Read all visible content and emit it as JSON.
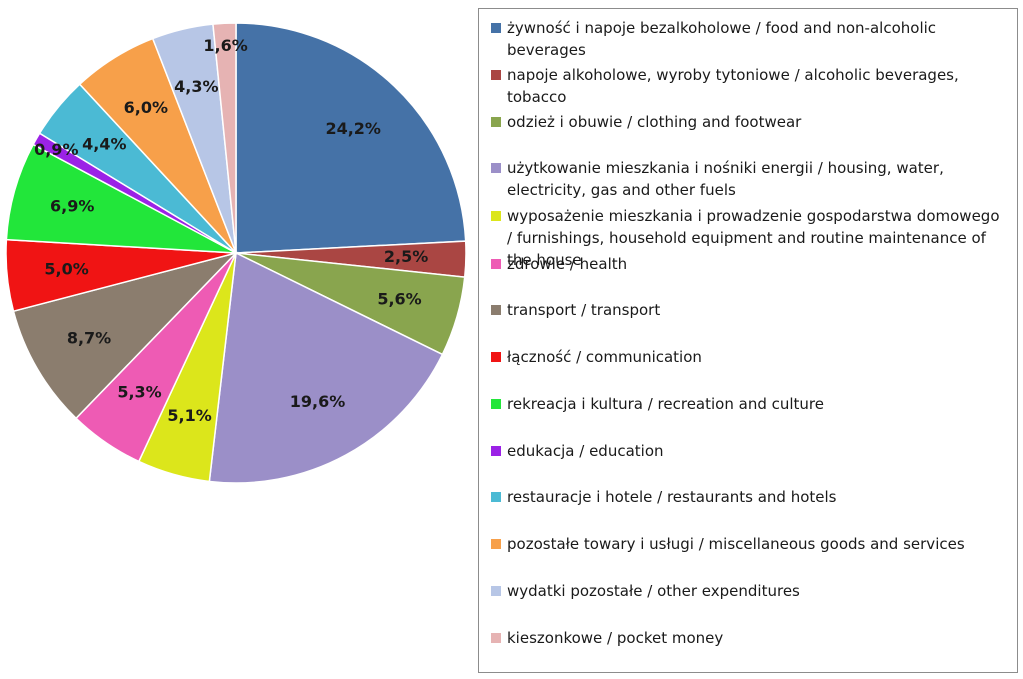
{
  "chart_data": {
    "type": "pie",
    "title": "",
    "start_angle_deg": 0,
    "direction": "clockwise",
    "legend_position": "right",
    "slices": [
      {
        "label": "żywność i napoje bezalkoholowe / food and non-alcoholic beverages",
        "value": 24.2,
        "display": "24,2%",
        "color": "#4572a7"
      },
      {
        "label": "napoje alkoholowe, wyroby tytoniowe / alcoholic beverages, tobacco",
        "value": 2.5,
        "display": "2,5%",
        "color": "#aa4643"
      },
      {
        "label": "odzież i obuwie / clothing and footwear",
        "value": 5.6,
        "display": "5,6%",
        "color": "#89a54e"
      },
      {
        "label": "użytkowanie mieszkania i nośniki energii / housing, water, electricity, gas and other fuels",
        "value": 19.6,
        "display": "19,6%",
        "color": "#9b8fc8"
      },
      {
        "label": "wyposażenie mieszkania i prowadzenie gospodarstwa domowego / furnishings, household equipment and routine maintenance of the house",
        "value": 5.1,
        "display": "5,1%",
        "color": "#dce61b"
      },
      {
        "label": "zdrowie / health",
        "value": 5.3,
        "display": "5,3%",
        "color": "#ee5bb4"
      },
      {
        "label": "transport / transport",
        "value": 8.7,
        "display": "8,7%",
        "color": "#8b7d6e"
      },
      {
        "label": "łączność / communication",
        "value": 5.0,
        "display": "5,0%",
        "color": "#f01414"
      },
      {
        "label": "rekreacja i kultura / recreation and culture",
        "value": 6.9,
        "display": "6,9%",
        "color": "#22e63a"
      },
      {
        "label": "edukacja / education",
        "value": 0.9,
        "display": "0,9%",
        "color": "#9b22e6"
      },
      {
        "label": "restauracje i hotele / restaurants and hotels",
        "value": 4.4,
        "display": "4,4%",
        "color": "#4bbad4"
      },
      {
        "label": "pozostałe towary i usługi / miscellaneous goods and services",
        "value": 6.0,
        "display": "6,0%",
        "color": "#f7a04a"
      },
      {
        "label": "wydatki pozostałe / other expenditures",
        "value": 4.3,
        "display": "4,3%",
        "color": "#b7c6e6"
      },
      {
        "label": "kieszonkowe / pocket money",
        "value": 1.6,
        "display": "1,6%",
        "color": "#e6b3b3"
      }
    ]
  }
}
